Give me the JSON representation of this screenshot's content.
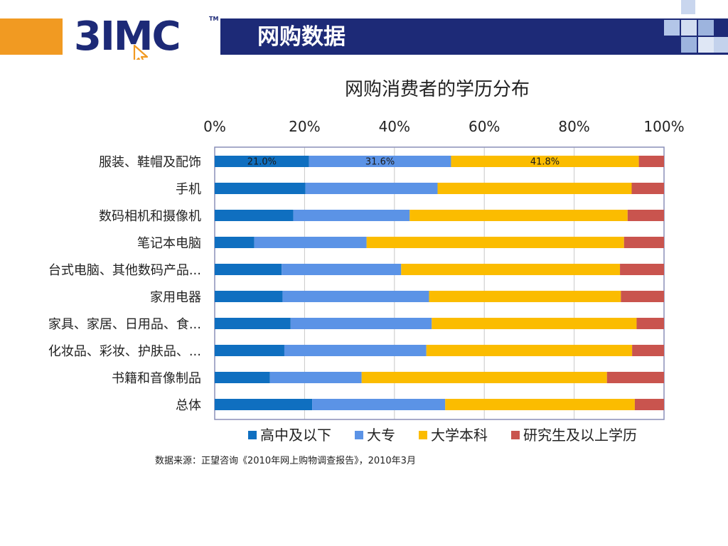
{
  "header": {
    "logo_text": "3IMC",
    "logo_tm": "TM",
    "title": "网购数据",
    "colors": {
      "bar": "#1d2a77",
      "orange": "#f19a22",
      "squares": "#9db4de"
    }
  },
  "chart_data": {
    "type": "bar",
    "orientation": "horizontal",
    "stacked": "percent",
    "title": "网购消费者的学历分布",
    "categories": [
      "服装、鞋帽及配饰",
      "手机",
      "数码相机和摄像机",
      "笔记本电脑",
      "台式电脑、其他数码产品...",
      "家用电器",
      "家具、家居、日用品、食...",
      "化妆品、彩妆、护肤品、...",
      "书籍和音像制品",
      "总体"
    ],
    "series": [
      {
        "name": "高中及以下",
        "color": "#0f6fc0",
        "values": [
          21.0,
          20.2,
          17.5,
          8.8,
          14.9,
          15.1,
          16.9,
          15.5,
          12.3,
          21.7
        ]
      },
      {
        "name": "大专",
        "color": "#5b93e6",
        "values": [
          31.6,
          29.4,
          25.9,
          25.0,
          26.6,
          32.6,
          31.4,
          31.6,
          20.4,
          29.6
        ]
      },
      {
        "name": "大学本科",
        "color": "#fbbc00",
        "values": [
          41.8,
          43.2,
          48.5,
          57.3,
          48.7,
          42.7,
          45.6,
          45.8,
          54.6,
          42.2
        ]
      },
      {
        "name": "研究生及以上学历",
        "color": "#c9544e",
        "values": [
          5.6,
          7.2,
          8.1,
          8.9,
          9.8,
          9.6,
          6.1,
          7.1,
          12.7,
          6.5
        ]
      }
    ],
    "data_labels": [
      {
        "category_index": 0,
        "series_index": 0,
        "text": "21.0%"
      },
      {
        "category_index": 0,
        "series_index": 1,
        "text": "31.6%"
      },
      {
        "category_index": 0,
        "series_index": 2,
        "text": "41.8%"
      }
    ],
    "x_ticks": [
      "0%",
      "20%",
      "40%",
      "60%",
      "80%",
      "100%"
    ],
    "xlim": [
      0,
      100
    ],
    "x_axis_position": "top",
    "grid": true,
    "legend_position": "bottom"
  },
  "source": "数据来源：正望咨询《2010年网上购物调查报告》，2010年3月"
}
